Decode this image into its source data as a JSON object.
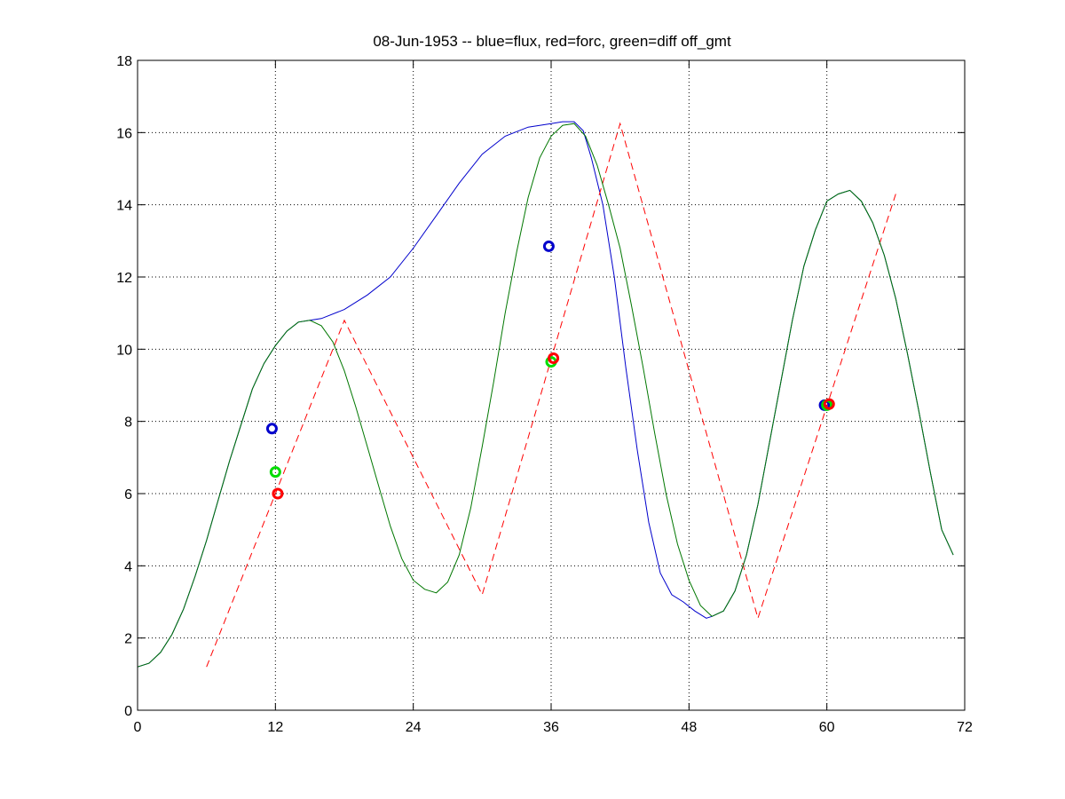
{
  "chart_data": {
    "type": "line",
    "title": "08-Jun-1953 -- blue=flux, red=forc, green=diff off_gmt",
    "xlabel": "",
    "ylabel": "",
    "xlim": [
      0,
      72
    ],
    "ylim": [
      0,
      18
    ],
    "xticks": [
      0,
      12,
      24,
      36,
      48,
      60,
      72
    ],
    "yticks": [
      0,
      2,
      4,
      6,
      8,
      10,
      12,
      14,
      16,
      18
    ],
    "grid": true,
    "legend": "none",
    "series": [
      {
        "key": "flux",
        "color": "#0000cc",
        "style": "solid",
        "x": [
          0,
          1,
          2,
          3,
          4,
          5,
          6,
          7,
          8,
          9,
          10,
          11,
          12,
          13,
          14,
          15,
          16,
          18,
          20,
          22,
          24,
          26,
          28,
          30,
          32,
          34,
          36,
          37,
          38,
          38.8,
          39.5,
          40.5,
          41.5,
          42.5,
          43.5,
          44.5,
          45.5,
          46.5,
          47.5,
          48.5,
          49.5,
          50,
          51,
          52,
          53,
          54,
          55,
          56,
          57,
          58,
          59,
          60,
          61,
          62,
          63,
          64,
          65,
          66,
          67,
          68,
          69,
          70,
          71
        ],
        "y": [
          1.2,
          1.3,
          1.6,
          2.1,
          2.8,
          3.7,
          4.7,
          5.8,
          6.9,
          7.9,
          8.9,
          9.6,
          10.1,
          10.5,
          10.75,
          10.8,
          10.85,
          11.1,
          11.5,
          12.0,
          12.8,
          13.7,
          14.6,
          15.4,
          15.9,
          16.15,
          16.25,
          16.3,
          16.3,
          16.05,
          15.3,
          14.0,
          12.0,
          9.5,
          7.2,
          5.2,
          3.8,
          3.2,
          3.0,
          2.75,
          2.55,
          2.6,
          2.75,
          3.3,
          4.3,
          5.7,
          7.4,
          9.1,
          10.8,
          12.3,
          13.3,
          14.1,
          14.3,
          14.4,
          14.1,
          13.5,
          12.6,
          11.4,
          9.9,
          8.3,
          6.6,
          5.0,
          4.3
        ]
      },
      {
        "key": "forc",
        "color": "#ff0000",
        "style": "dashed",
        "x": [
          6,
          18,
          30,
          42,
          54,
          66
        ],
        "y": [
          1.2,
          10.8,
          3.2,
          16.25,
          2.55,
          14.3
        ]
      },
      {
        "key": "diff",
        "color": "#007700",
        "style": "solid",
        "x": [
          0,
          1,
          2,
          3,
          4,
          5,
          6,
          7,
          8,
          9,
          10,
          11,
          12,
          13,
          14,
          15,
          16,
          17,
          18,
          19,
          20,
          21,
          22,
          23,
          24,
          25,
          26,
          27,
          28,
          29,
          30,
          31,
          32,
          33,
          34,
          35,
          36,
          37,
          38,
          39,
          40,
          41,
          42,
          43,
          44,
          45,
          46,
          47,
          48,
          49,
          50,
          51,
          52,
          53,
          54,
          55,
          56,
          57,
          58,
          59,
          60,
          61,
          62,
          63,
          64,
          65,
          66,
          67,
          68,
          69,
          70,
          71
        ],
        "y": [
          1.2,
          1.3,
          1.6,
          2.1,
          2.8,
          3.7,
          4.7,
          5.8,
          6.9,
          7.9,
          8.9,
          9.6,
          10.1,
          10.5,
          10.75,
          10.8,
          10.65,
          10.2,
          9.4,
          8.4,
          7.3,
          6.2,
          5.1,
          4.2,
          3.6,
          3.35,
          3.25,
          3.55,
          4.3,
          5.6,
          7.3,
          9.1,
          11.0,
          12.7,
          14.2,
          15.3,
          15.9,
          16.2,
          16.25,
          15.9,
          15.1,
          14.0,
          12.8,
          11.2,
          9.5,
          7.7,
          6.0,
          4.6,
          3.6,
          2.9,
          2.6,
          2.75,
          3.3,
          4.3,
          5.7,
          7.4,
          9.1,
          10.8,
          12.3,
          13.3,
          14.1,
          14.3,
          14.4,
          14.1,
          13.5,
          12.6,
          11.4,
          9.9,
          8.3,
          6.6,
          5.0,
          4.3
        ]
      }
    ],
    "markers": [
      {
        "series": "flux",
        "color": "#0000cc",
        "x": 11.7,
        "y": 7.8
      },
      {
        "series": "diff",
        "color": "#00dd00",
        "x": 12.0,
        "y": 6.6
      },
      {
        "series": "forc",
        "color": "#ff0000",
        "x": 12.2,
        "y": 6.0
      },
      {
        "series": "flux",
        "color": "#0000cc",
        "x": 35.8,
        "y": 12.85
      },
      {
        "series": "diff",
        "color": "#00dd00",
        "x": 36.0,
        "y": 9.65
      },
      {
        "series": "forc",
        "color": "#ff0000",
        "x": 36.2,
        "y": 9.75
      },
      {
        "series": "flux",
        "color": "#0000cc",
        "x": 59.8,
        "y": 8.45
      },
      {
        "series": "diff",
        "color": "#00dd00",
        "x": 60.0,
        "y": 8.45
      },
      {
        "series": "forc",
        "color": "#ff0000",
        "x": 60.2,
        "y": 8.48
      }
    ]
  }
}
